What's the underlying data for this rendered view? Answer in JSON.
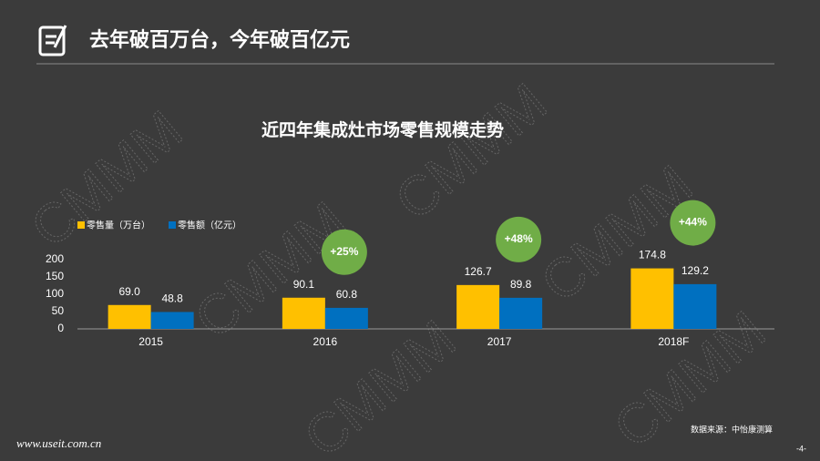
{
  "header": {
    "title": "去年破百万台，今年破百亿元"
  },
  "watermark": "CMMM",
  "footer": {
    "source": "数据来源：中怡康测算",
    "page": "-4-",
    "url": "www.useit.com.cn"
  },
  "chart_data": {
    "type": "bar",
    "title": "近四年集成灶市场零售规模走势",
    "categories": [
      "2015",
      "2016",
      "2017",
      "2018F"
    ],
    "series": [
      {
        "name": "零售量（万台）",
        "color": "#ffc000",
        "values": [
          69.0,
          90.1,
          126.7,
          174.8
        ],
        "value_labels": [
          "69.0",
          "90.1",
          "126.7",
          "174.8"
        ]
      },
      {
        "name": "零售额（亿元）",
        "color": "#0070c0",
        "values": [
          48.8,
          60.8,
          89.8,
          129.2
        ],
        "value_labels": [
          "48.8",
          "60.8",
          "89.8",
          "129.2"
        ]
      }
    ],
    "growth_labels": [
      null,
      "+25%",
      "+48%",
      "+44%"
    ],
    "growth_color": "#70ad47",
    "ylim": [
      0,
      200
    ],
    "yticks": [
      0,
      50,
      100,
      150,
      200
    ],
    "grid": false,
    "legend": "top-left"
  }
}
